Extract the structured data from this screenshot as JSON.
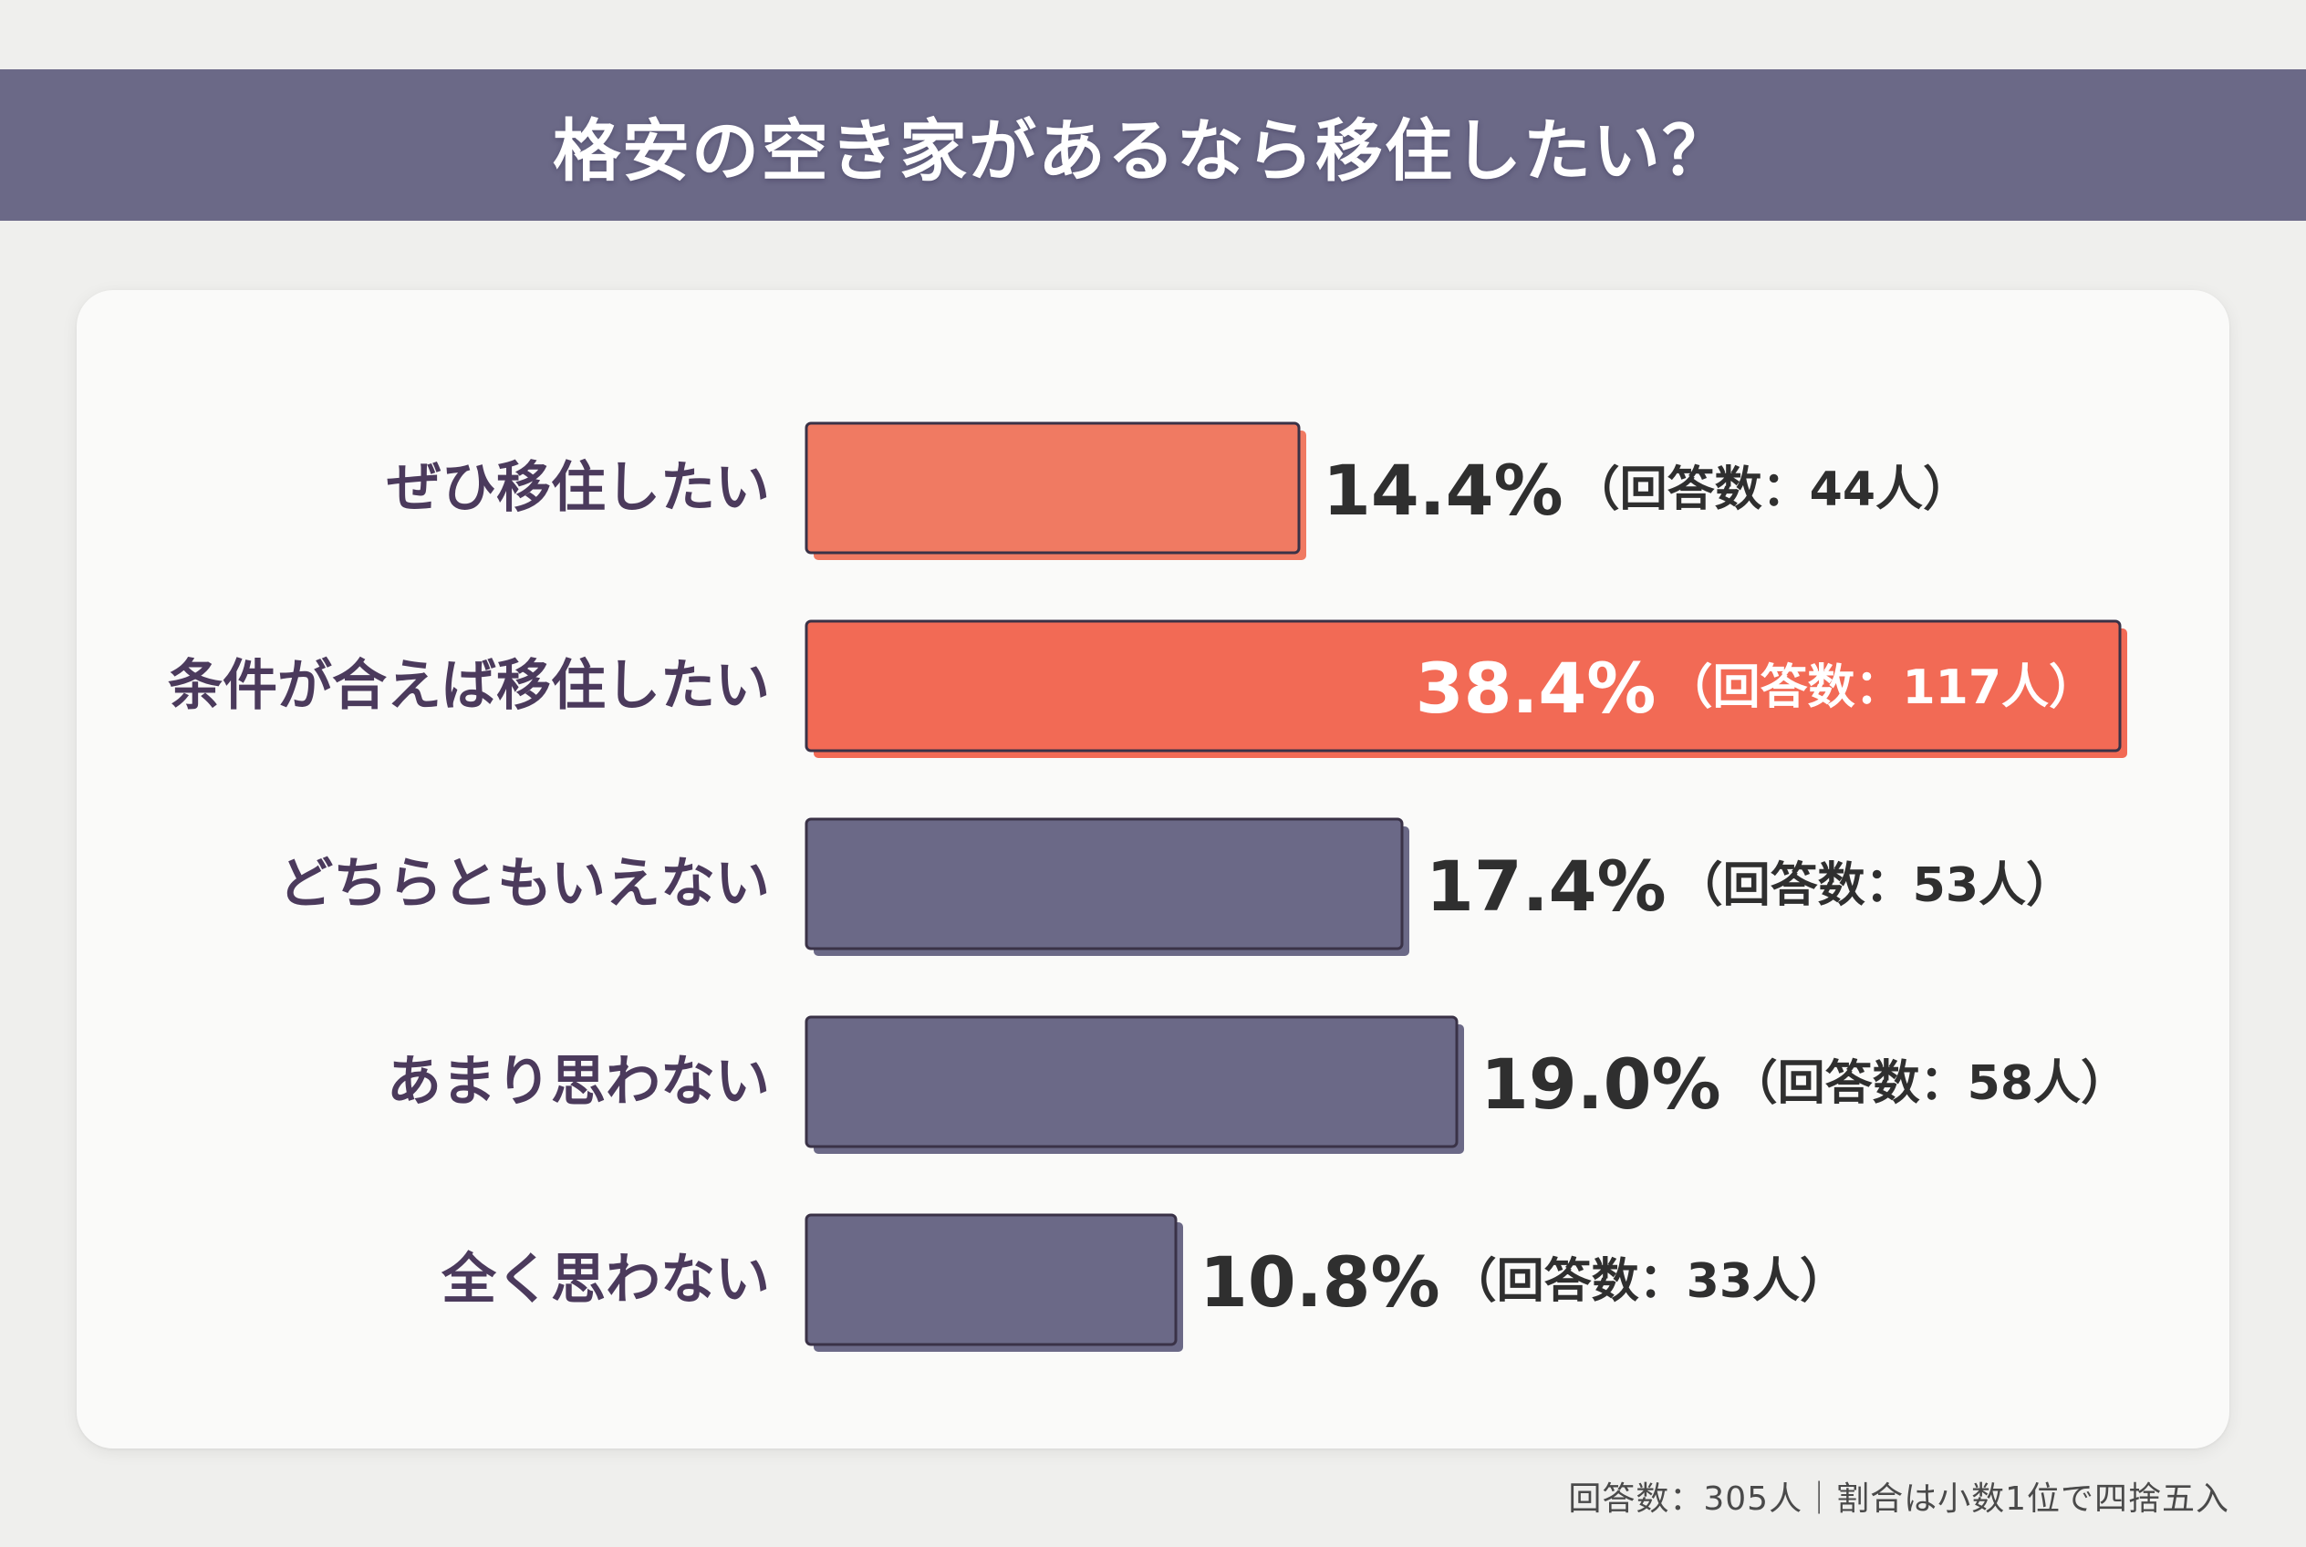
{
  "title": "格安の空き家があるなら移住したい？",
  "footnote": "回答数：305人｜割合は小数1位で四捨五入",
  "colors": {
    "background": "#efefed",
    "header_band": "#6b6987",
    "card": "#fafaf9",
    "bar_highlight": "#f07a62",
    "bar_highlight_strong": "#f26a55",
    "bar_neutral": "#6b6987",
    "bar_outline": "#3a3247",
    "category_text": "#4b3a5c",
    "value_text_dark": "#2f2f2f",
    "value_text_light": "#ffffff"
  },
  "chart_data": {
    "type": "bar",
    "orientation": "horizontal",
    "title": "格安の空き家があるなら移住したい？",
    "categories": [
      "ぜひ移住したい",
      "条件が合えば移住したい",
      "どちらともいえない",
      "あまり思わない",
      "全く思わない"
    ],
    "values": [
      14.4,
      38.4,
      17.4,
      19.0,
      10.8
    ],
    "value_labels": [
      "14.4%",
      "38.4%",
      "17.4%",
      "19.0%",
      "10.8%"
    ],
    "counts": [
      "（回答数：44人）",
      "（回答数：117人）",
      "（回答数：53人）",
      "（回答数：58人）",
      "（回答数：33人）"
    ],
    "units": "%",
    "bar_colors": [
      "#f07a62",
      "#f26a55",
      "#6b6987",
      "#6b6987",
      "#6b6987"
    ],
    "label_inside": [
      false,
      true,
      false,
      false,
      false
    ],
    "xlim": [
      0,
      38.4
    ],
    "grid": false,
    "legend": "none"
  }
}
